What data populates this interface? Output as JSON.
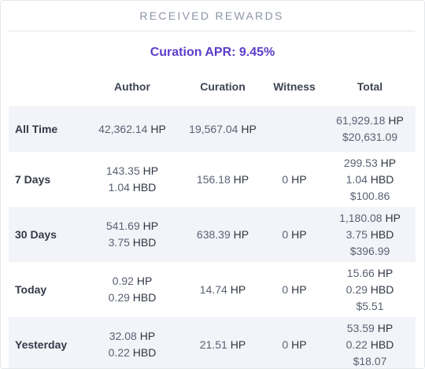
{
  "title": "RECEIVED REWARDS",
  "curation_apr": "Curation APR: 9.45%",
  "columns": [
    "Author",
    "Curation",
    "Witness",
    "Total"
  ],
  "rows": [
    {
      "label": "All Time",
      "author": [
        {
          "v": "42,362.14",
          "u": "HP"
        }
      ],
      "curation": [
        {
          "v": "19,567.04",
          "u": "HP"
        }
      ],
      "witness": [],
      "total": [
        {
          "v": "61,929.18",
          "u": "HP"
        },
        {
          "v": "$20,631.09",
          "u": ""
        }
      ]
    },
    {
      "label": "7 Days",
      "author": [
        {
          "v": "143.35",
          "u": "HP"
        },
        {
          "v": "1.04",
          "u": "HBD"
        }
      ],
      "curation": [
        {
          "v": "156.18",
          "u": "HP"
        }
      ],
      "witness": [
        {
          "v": "0",
          "u": "HP"
        }
      ],
      "total": [
        {
          "v": "299.53",
          "u": "HP"
        },
        {
          "v": "1.04",
          "u": "HBD"
        },
        {
          "v": "$100.86",
          "u": ""
        }
      ]
    },
    {
      "label": "30 Days",
      "author": [
        {
          "v": "541.69",
          "u": "HP"
        },
        {
          "v": "3.75",
          "u": "HBD"
        }
      ],
      "curation": [
        {
          "v": "638.39",
          "u": "HP"
        }
      ],
      "witness": [
        {
          "v": "0",
          "u": "HP"
        }
      ],
      "total": [
        {
          "v": "1,180.08",
          "u": "HP"
        },
        {
          "v": "3.75",
          "u": "HBD"
        },
        {
          "v": "$396.99",
          "u": ""
        }
      ]
    },
    {
      "label": "Today",
      "author": [
        {
          "v": "0.92",
          "u": "HP"
        },
        {
          "v": "0.29",
          "u": "HBD"
        }
      ],
      "curation": [
        {
          "v": "14.74",
          "u": "HP"
        }
      ],
      "witness": [
        {
          "v": "0",
          "u": "HP"
        }
      ],
      "total": [
        {
          "v": "15.66",
          "u": "HP"
        },
        {
          "v": "0.29",
          "u": "HBD"
        },
        {
          "v": "$5.51",
          "u": ""
        }
      ]
    },
    {
      "label": "Yesterday",
      "author": [
        {
          "v": "32.08",
          "u": "HP"
        },
        {
          "v": "0.22",
          "u": "HBD"
        }
      ],
      "curation": [
        {
          "v": "21.51",
          "u": "HP"
        }
      ],
      "witness": [
        {
          "v": "0",
          "u": "HP"
        }
      ],
      "total": [
        {
          "v": "53.59",
          "u": "HP"
        },
        {
          "v": "0.22",
          "u": "HBD"
        },
        {
          "v": "$18.07",
          "u": ""
        }
      ]
    }
  ]
}
